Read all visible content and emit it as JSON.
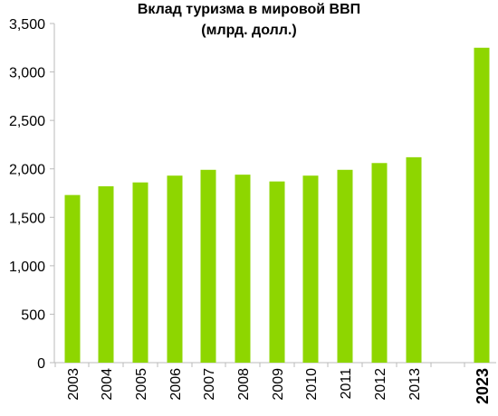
{
  "chart_data": {
    "type": "bar",
    "title_line1": "Вклад туризма в мировой ВВП",
    "title_line2": "(млрд. долл.)",
    "categories": [
      "2003",
      "2004",
      "2005",
      "2006",
      "2007",
      "2008",
      "2009",
      "2010",
      "2011",
      "2012",
      "2013",
      "2023"
    ],
    "values": [
      1730,
      1820,
      1860,
      1930,
      1990,
      1940,
      1870,
      1930,
      1990,
      2060,
      2120,
      3250
    ],
    "highlighted_category": "2023",
    "y_ticks": [
      "0",
      "500",
      "1,000",
      "1,500",
      "2,000",
      "2,500",
      "3,000",
      "3,500"
    ],
    "ylim": [
      0,
      3500
    ],
    "grid": false,
    "bar_color": "#8ed600",
    "axis_color": "#bbbbbb"
  }
}
